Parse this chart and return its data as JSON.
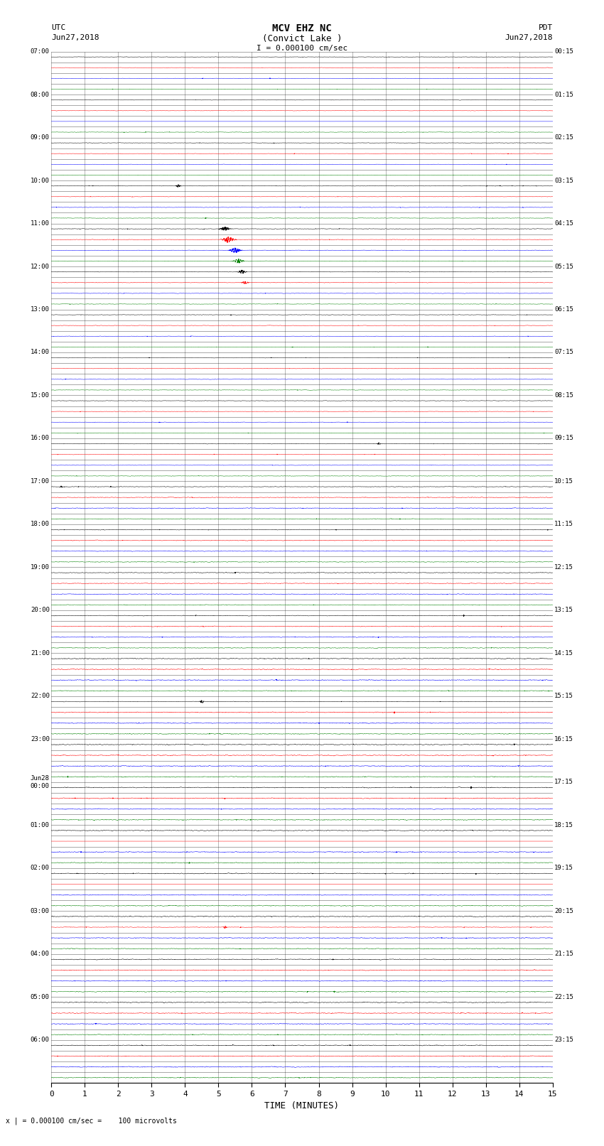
{
  "title_line1": "MCV EHZ NC",
  "title_line2": "(Convict Lake )",
  "scale_label": "I = 0.000100 cm/sec",
  "left_header": "UTC",
  "left_date": "Jun27,2018",
  "right_header": "PDT",
  "right_date": "Jun27,2018",
  "bottom_label": "TIME (MINUTES)",
  "bottom_note": "x | = 0.000100 cm/sec =    100 microvolts",
  "xlabel_ticks": [
    0,
    1,
    2,
    3,
    4,
    5,
    6,
    7,
    8,
    9,
    10,
    11,
    12,
    13,
    14,
    15
  ],
  "xlim": [
    0,
    15
  ],
  "utc_times_major": [
    "07:00",
    "08:00",
    "09:00",
    "10:00",
    "11:00",
    "12:00",
    "13:00",
    "14:00",
    "15:00",
    "16:00",
    "17:00",
    "18:00",
    "19:00",
    "20:00",
    "21:00",
    "22:00",
    "23:00",
    "Jun28\n00:00",
    "01:00",
    "02:00",
    "03:00",
    "04:00",
    "05:00",
    "06:00"
  ],
  "pdt_times_major": [
    "00:15",
    "01:15",
    "02:15",
    "03:15",
    "04:15",
    "05:15",
    "06:15",
    "07:15",
    "08:15",
    "09:15",
    "10:15",
    "11:15",
    "12:15",
    "13:15",
    "14:15",
    "15:15",
    "16:15",
    "17:15",
    "18:15",
    "19:15",
    "20:15",
    "21:15",
    "22:15",
    "23:15"
  ],
  "num_traces": 96,
  "trace_colors_cycle": [
    "black",
    "red",
    "blue",
    "green"
  ],
  "background_color": "white",
  "grid_color": "#888888",
  "fig_width": 8.5,
  "fig_height": 16.13,
  "dpi": 100
}
